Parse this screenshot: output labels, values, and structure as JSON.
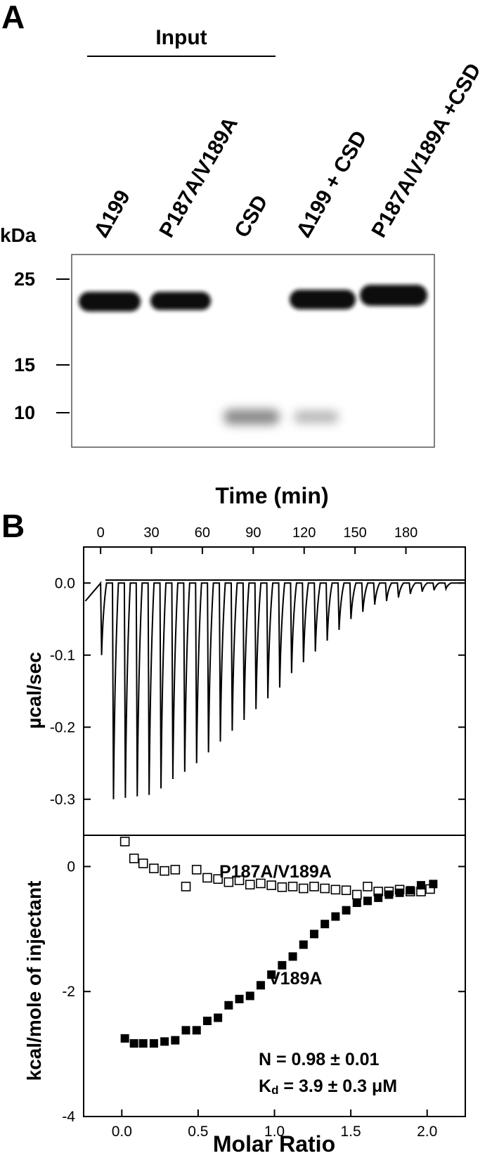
{
  "panelA": {
    "letter": "A",
    "input_label": "Input",
    "kda_label": "kDa",
    "lanes": [
      "Δ199",
      "P187A/V189A",
      "CSD",
      "Δ199 + CSD",
      "P187A/V189A +CSD"
    ],
    "markers": [
      "25",
      "15",
      "10"
    ]
  },
  "panelB": {
    "letter": "B",
    "top_xlabel": "Time (min)",
    "top_xticks": [
      "0",
      "30",
      "60",
      "90",
      "120",
      "150",
      "180"
    ],
    "top_ylabel": "µcal/sec",
    "top_yticks": [
      "0.0",
      "-0.1",
      "-0.2",
      "-0.3"
    ],
    "bottom_ylabel": "kcal/mole of injectant",
    "bottom_yticks": [
      "0",
      "-2",
      "-4"
    ],
    "bottom_xlabel": "Molar Ratio",
    "bottom_xticks": [
      "0.0",
      "0.5",
      "1.0",
      "1.5",
      "2.0"
    ],
    "label_open": "P187A/V189A",
    "label_filled": "V189A",
    "n_text": "N = 0.98 ± 0.01",
    "kd_text_main": "K",
    "kd_text_sub": "d",
    "kd_text_rest": " = 3.9 ± 0.3 μM"
  },
  "chart_data": [
    {
      "type": "line",
      "title": "",
      "xlabel": "Time (min)",
      "ylabel": "µcal/sec",
      "xlim": [
        -10,
        215
      ],
      "ylim": [
        -0.35,
        0.05
      ],
      "injection_times_min": [
        0,
        7,
        14,
        21,
        28,
        35,
        42,
        49,
        56,
        63,
        70,
        77,
        84,
        91,
        98,
        105,
        112,
        119,
        126,
        133,
        140,
        147,
        154,
        161,
        168,
        175,
        182,
        189,
        196,
        203
      ],
      "peak_minima": [
        -0.1,
        -0.3,
        -0.298,
        -0.296,
        -0.294,
        -0.285,
        -0.272,
        -0.262,
        -0.25,
        -0.235,
        -0.22,
        -0.205,
        -0.19,
        -0.175,
        -0.16,
        -0.145,
        -0.125,
        -0.11,
        -0.095,
        -0.08,
        -0.065,
        -0.05,
        -0.04,
        -0.03,
        -0.025,
        -0.02,
        -0.015,
        -0.012,
        -0.01,
        -0.008
      ]
    },
    {
      "type": "scatter",
      "title": "",
      "xlabel": "Molar Ratio",
      "ylabel": "kcal/mole of injectant",
      "xlim": [
        -0.25,
        2.25
      ],
      "ylim": [
        -4,
        0.5
      ],
      "series": [
        {
          "name": "P187A/V189A",
          "marker": "open-square",
          "x": [
            0.02,
            0.08,
            0.14,
            0.21,
            0.28,
            0.35,
            0.42,
            0.49,
            0.56,
            0.63,
            0.7,
            0.77,
            0.84,
            0.91,
            0.98,
            1.05,
            1.12,
            1.19,
            1.26,
            1.33,
            1.4,
            1.47,
            1.54,
            1.61,
            1.68,
            1.75,
            1.82,
            1.89,
            1.96,
            2.02
          ],
          "y": [
            0.4,
            0.13,
            0.05,
            -0.03,
            -0.07,
            -0.05,
            -0.32,
            -0.05,
            -0.18,
            -0.2,
            -0.25,
            -0.22,
            -0.29,
            -0.27,
            -0.3,
            -0.33,
            -0.32,
            -0.35,
            -0.32,
            -0.35,
            -0.37,
            -0.38,
            -0.45,
            -0.32,
            -0.4,
            -0.4,
            -0.37,
            -0.4,
            -0.4,
            -0.36
          ]
        },
        {
          "name": "V189A",
          "marker": "filled-square",
          "x": [
            0.02,
            0.08,
            0.14,
            0.21,
            0.28,
            0.35,
            0.42,
            0.49,
            0.56,
            0.63,
            0.7,
            0.77,
            0.84,
            0.91,
            0.98,
            1.05,
            1.12,
            1.19,
            1.26,
            1.33,
            1.4,
            1.47,
            1.54,
            1.61,
            1.68,
            1.75,
            1.82,
            1.89,
            1.96,
            2.04
          ],
          "y": [
            -2.75,
            -2.83,
            -2.83,
            -2.83,
            -2.8,
            -2.78,
            -2.62,
            -2.62,
            -2.47,
            -2.42,
            -2.22,
            -2.12,
            -2.07,
            -1.9,
            -1.73,
            -1.58,
            -1.44,
            -1.25,
            -1.08,
            -0.92,
            -0.8,
            -0.7,
            -0.58,
            -0.55,
            -0.5,
            -0.45,
            -0.42,
            -0.38,
            -0.3,
            -0.28
          ]
        }
      ]
    }
  ]
}
